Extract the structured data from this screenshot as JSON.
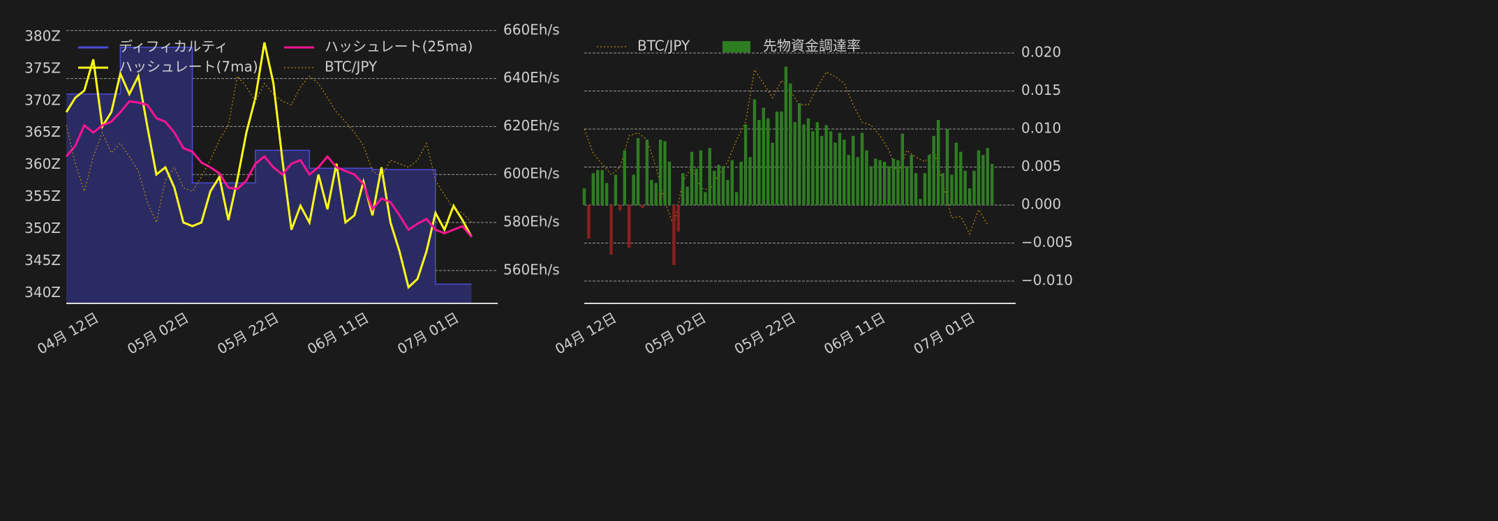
{
  "chart_data": [
    {
      "type": "line",
      "x": [
        "04-05",
        "04-07",
        "04-09",
        "04-11",
        "04-13",
        "04-15",
        "04-17",
        "04-19",
        "04-21",
        "04-23",
        "04-25",
        "04-27",
        "04-29",
        "05-01",
        "05-03",
        "05-05",
        "05-07",
        "05-09",
        "05-11",
        "05-13",
        "05-15",
        "05-17",
        "05-19",
        "05-21",
        "05-23",
        "05-25",
        "05-27",
        "05-29",
        "05-31",
        "06-02",
        "06-04",
        "06-06",
        "06-08",
        "06-10",
        "06-12",
        "06-14",
        "06-16",
        "06-18",
        "06-20",
        "06-22",
        "06-24",
        "06-26",
        "06-28",
        "06-30",
        "07-02",
        "07-04"
      ],
      "xticks": [
        {
          "value": "04-12",
          "label": "04月 12日"
        },
        {
          "value": "05-02",
          "label": "05月 02日"
        },
        {
          "value": "05-22",
          "label": "05月 22日"
        },
        {
          "value": "06-11",
          "label": "06月 11日"
        },
        {
          "value": "07-01",
          "label": "07月 01日"
        }
      ],
      "ylim": [
        338.4,
        382.5
      ],
      "yticks": [
        {
          "value": 340,
          "label": "340Z"
        },
        {
          "value": 345,
          "label": "345Z"
        },
        {
          "value": 350,
          "label": "350Z"
        },
        {
          "value": 355,
          "label": "355Z"
        },
        {
          "value": 360,
          "label": "360Z"
        },
        {
          "value": 365,
          "label": "365Z"
        },
        {
          "value": 370,
          "label": "370Z"
        },
        {
          "value": 375,
          "label": "375Z"
        },
        {
          "value": 380,
          "label": "380Z"
        }
      ],
      "y2lim": [
        546.3,
        664
      ],
      "y2ticks": [
        {
          "value": 560,
          "label": "560Eh/s"
        },
        {
          "value": 580,
          "label": "580Eh/s"
        },
        {
          "value": 600,
          "label": "600Eh/s"
        },
        {
          "value": 620,
          "label": "620Eh/s"
        },
        {
          "value": 640,
          "label": "640Eh/s"
        },
        {
          "value": 660,
          "label": "660Eh/s"
        }
      ],
      "grid": true,
      "legend": "upper left",
      "series": [
        {
          "name": "ディフィカルティ",
          "color": "#4b4bd6",
          "fill": "#2b2b63",
          "step": true,
          "values": [
            371.1,
            371.1,
            371.1,
            371.1,
            371.1,
            371.1,
            378.4,
            378.4,
            378.4,
            378.4,
            378.4,
            378.4,
            378.4,
            378.4,
            357.2,
            357.2,
            357.2,
            357.2,
            357.2,
            357.2,
            357.2,
            362.3,
            362.3,
            362.3,
            362.3,
            362.3,
            362.3,
            359.5,
            359.5,
            359.5,
            359.5,
            359.5,
            359.5,
            359.5,
            359.3,
            359.3,
            359.3,
            359.3,
            359.3,
            359.3,
            359.3,
            341.4,
            341.4,
            341.4,
            341.4,
            341.4
          ]
        },
        {
          "name": "ハッシュレート(7ma)",
          "color": "#ffff1a",
          "axis": "y2",
          "values": [
            626,
            632,
            635,
            648,
            620,
            626,
            642,
            633.5,
            641,
            620,
            600,
            603,
            594.5,
            580,
            578.5,
            580,
            593,
            599,
            581,
            598,
            617.5,
            632,
            655,
            638,
            606,
            577,
            587,
            580,
            600,
            585.5,
            604.5,
            580,
            583,
            597,
            583,
            603,
            580,
            568,
            553,
            556.5,
            568,
            584,
            577,
            587,
            581,
            574
          ]
        },
        {
          "name": "ハッシュレート(25ma)",
          "color": "#ff1493",
          "axis": "y2",
          "values": [
            607.5,
            612,
            620.5,
            617.5,
            620.5,
            622,
            626,
            630.5,
            630,
            629,
            623.5,
            622,
            617.5,
            611,
            609.5,
            605,
            603,
            600.5,
            594.5,
            594,
            597.5,
            604.5,
            607.5,
            603,
            600,
            604.5,
            606,
            600,
            603,
            607.5,
            603,
            601.5,
            600,
            596,
            585.5,
            590,
            588.5,
            583,
            577,
            579.5,
            581.5,
            577,
            575.5,
            577,
            578.5,
            574
          ]
        },
        {
          "name": "BTC/JPY",
          "color": "#b8860b",
          "style": "dotted",
          "axis": "y2",
          "values": [
            620.5,
            604.5,
            593,
            607.5,
            617.5,
            609,
            613,
            607.5,
            601.5,
            588.5,
            580,
            597.5,
            603,
            594.5,
            593,
            599,
            606,
            614.5,
            620.5,
            641,
            636.5,
            630.5,
            638,
            633.5,
            630.5,
            629,
            636.5,
            641,
            638,
            632,
            626,
            622,
            617.5,
            612,
            601.5,
            599,
            606,
            604.5,
            603,
            606,
            613,
            597.5,
            591.5,
            585.5,
            584,
            580
          ]
        }
      ]
    },
    {
      "type": "bar",
      "x": [
        "04-05",
        "04-06",
        "04-07",
        "04-08",
        "04-09",
        "04-10",
        "04-11",
        "04-12",
        "04-13",
        "04-14",
        "04-15",
        "04-16",
        "04-17",
        "04-18",
        "04-19",
        "04-20",
        "04-21",
        "04-22",
        "04-23",
        "04-24",
        "04-25",
        "04-26",
        "04-27",
        "04-28",
        "04-29",
        "04-30",
        "05-01",
        "05-02",
        "05-03",
        "05-04",
        "05-05",
        "05-06",
        "05-07",
        "05-08",
        "05-09",
        "05-10",
        "05-11",
        "05-12",
        "05-13",
        "05-14",
        "05-15",
        "05-16",
        "05-17",
        "05-18",
        "05-19",
        "05-20",
        "05-21",
        "05-22",
        "05-23",
        "05-24",
        "05-25",
        "05-26",
        "05-27",
        "05-28",
        "05-29",
        "05-30",
        "05-31",
        "06-01",
        "06-02",
        "06-03",
        "06-04",
        "06-05",
        "06-06",
        "06-07",
        "06-08",
        "06-09",
        "06-10",
        "06-11",
        "06-12",
        "06-13",
        "06-14",
        "06-15",
        "06-16",
        "06-17",
        "06-18",
        "06-19",
        "06-20",
        "06-21",
        "06-22",
        "06-23",
        "06-24",
        "06-25",
        "06-26",
        "06-27",
        "06-28",
        "06-29",
        "06-30",
        "07-01",
        "07-02",
        "07-03",
        "07-04",
        "07-05"
      ],
      "xticks": [
        {
          "value": "04-12",
          "label": "04月 12日"
        },
        {
          "value": "05-02",
          "label": "05月 02日"
        },
        {
          "value": "05-22",
          "label": "05月 22日"
        },
        {
          "value": "06-11",
          "label": "06月 11日"
        },
        {
          "value": "07-01",
          "label": "07月 01日"
        }
      ],
      "ylim": [
        -0.01294,
        0.02422
      ],
      "yticks": [
        {
          "value": -0.01,
          "label": "−0.010"
        },
        {
          "value": -0.005,
          "label": "−0.005"
        },
        {
          "value": 0,
          "label": "0.000"
        },
        {
          "value": 0.005,
          "label": "0.005"
        },
        {
          "value": 0.01,
          "label": "0.010"
        },
        {
          "value": 0.015,
          "label": "0.015"
        },
        {
          "value": 0.02,
          "label": "0.020"
        }
      ],
      "grid": true,
      "legend": "upper left",
      "series": [
        {
          "name": "BTC/JPY",
          "type": "line",
          "color": "#b8860b",
          "style": "dotted",
          "x": [
            "04-05",
            "04-07",
            "04-09",
            "04-11",
            "04-13",
            "04-15",
            "04-17",
            "04-19",
            "04-21",
            "04-23",
            "04-25",
            "04-27",
            "04-29",
            "05-01",
            "05-03",
            "05-05",
            "05-07",
            "05-09",
            "05-11",
            "05-13",
            "05-15",
            "05-17",
            "05-19",
            "05-21",
            "05-23",
            "05-25",
            "05-27",
            "05-29",
            "05-31",
            "06-02",
            "06-04",
            "06-06",
            "06-08",
            "06-10",
            "06-12",
            "06-14",
            "06-16",
            "06-18",
            "06-20",
            "06-22",
            "06-24",
            "06-26",
            "06-28",
            "06-30",
            "07-02",
            "07-04"
          ],
          "values": [
            0.01,
            0.0068,
            0.0054,
            0.004,
            0.005,
            0.0091,
            0.0095,
            0.0086,
            0.005,
            0.0004,
            -0.0028,
            0.0031,
            0.005,
            0.0022,
            0.002,
            0.004,
            0.0057,
            0.0086,
            0.0109,
            0.0178,
            0.016,
            0.0141,
            0.0164,
            0.015,
            0.0132,
            0.0132,
            0.0155,
            0.0175,
            0.0169,
            0.016,
            0.0132,
            0.0109,
            0.0105,
            0.0091,
            0.0072,
            0.004,
            0.0072,
            0.0063,
            0.0057,
            0.0072,
            0.0029,
            -0.0017,
            -0.0015,
            -0.0038,
            -0.0006,
            -0.0026
          ]
        },
        {
          "name": "先物資金調達率",
          "type": "bar",
          "color": "#2e7d22",
          "negative_color": "#8b1f1f",
          "values": [
            0.0022,
            -0.0044,
            0.0042,
            0.0046,
            0.0046,
            0.0029,
            -0.0065,
            0.004,
            -0.0007,
            0.0072,
            -0.0056,
            0.004,
            0.0088,
            -0.0004,
            0.0086,
            0.0033,
            0.0029,
            0.0086,
            0.0084,
            0.0057,
            -0.0079,
            -0.0035,
            0.0042,
            0.0024,
            0.007,
            0.0048,
            0.0072,
            0.0017,
            0.0075,
            0.0045,
            0.0053,
            0.0051,
            0.0033,
            0.0059,
            0.0017,
            0.0057,
            0.0106,
            0.0063,
            0.0139,
            0.0112,
            0.0128,
            0.0114,
            0.0082,
            0.0123,
            0.0123,
            0.0182,
            0.016,
            0.0109,
            0.0134,
            0.0106,
            0.0114,
            0.0097,
            0.0109,
            0.0091,
            0.0105,
            0.0097,
            0.0082,
            0.0095,
            0.0086,
            0.0066,
            0.0091,
            0.0063,
            0.0095,
            0.0072,
            0.0051,
            0.0061,
            0.0059,
            0.0057,
            0.0051,
            0.0061,
            0.0059,
            0.0094,
            0.0051,
            0.0066,
            0.0042,
            0.0008,
            0.0042,
            0.0066,
            0.0091,
            0.0112,
            0.0042,
            0.01,
            0.004,
            0.0082,
            0.007,
            0.0045,
            0.0022,
            0.0045,
            0.0072,
            0.0066,
            0.0075,
            0.0054
          ]
        }
      ]
    }
  ]
}
